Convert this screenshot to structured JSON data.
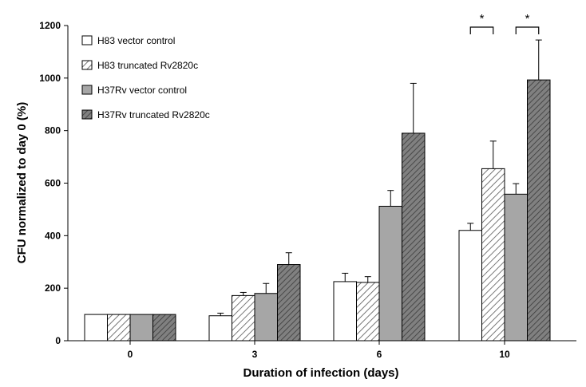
{
  "chart_data": {
    "type": "bar",
    "title": "",
    "xlabel": "Duration of infection (days)",
    "ylabel": "CFU normalized to day 0 (%)",
    "ylim": [
      0,
      1200
    ],
    "yticks": [
      0,
      200,
      400,
      600,
      800,
      1000,
      1200
    ],
    "categories": [
      "0",
      "3",
      "6",
      "10"
    ],
    "series": [
      {
        "name": "H83 vector control",
        "fill": "#ffffff",
        "pattern": "none",
        "values": [
          100,
          95,
          225,
          420
        ],
        "errors": [
          0,
          10,
          32,
          27
        ]
      },
      {
        "name": "H83 truncated Rv2820c",
        "fill": "#ffffff",
        "pattern": "hatch-light",
        "values": [
          100,
          172,
          222,
          655
        ],
        "errors": [
          0,
          12,
          22,
          105
        ]
      },
      {
        "name": "H37Rv vector control",
        "fill": "#a6a6a6",
        "pattern": "none",
        "values": [
          100,
          180,
          512,
          558
        ],
        "errors": [
          0,
          38,
          60,
          40
        ]
      },
      {
        "name": "H37Rv truncated Rv2820c",
        "fill": "#808080",
        "pattern": "hatch-dark",
        "values": [
          100,
          290,
          790,
          993
        ],
        "errors": [
          0,
          45,
          190,
          152
        ]
      }
    ],
    "significance": [
      {
        "category": "10",
        "from_series": 0,
        "to_series": 1,
        "label": "*"
      },
      {
        "category": "10",
        "from_series": 2,
        "to_series": 3,
        "label": "*"
      }
    ],
    "legend_position": "top-left",
    "grid": false
  }
}
